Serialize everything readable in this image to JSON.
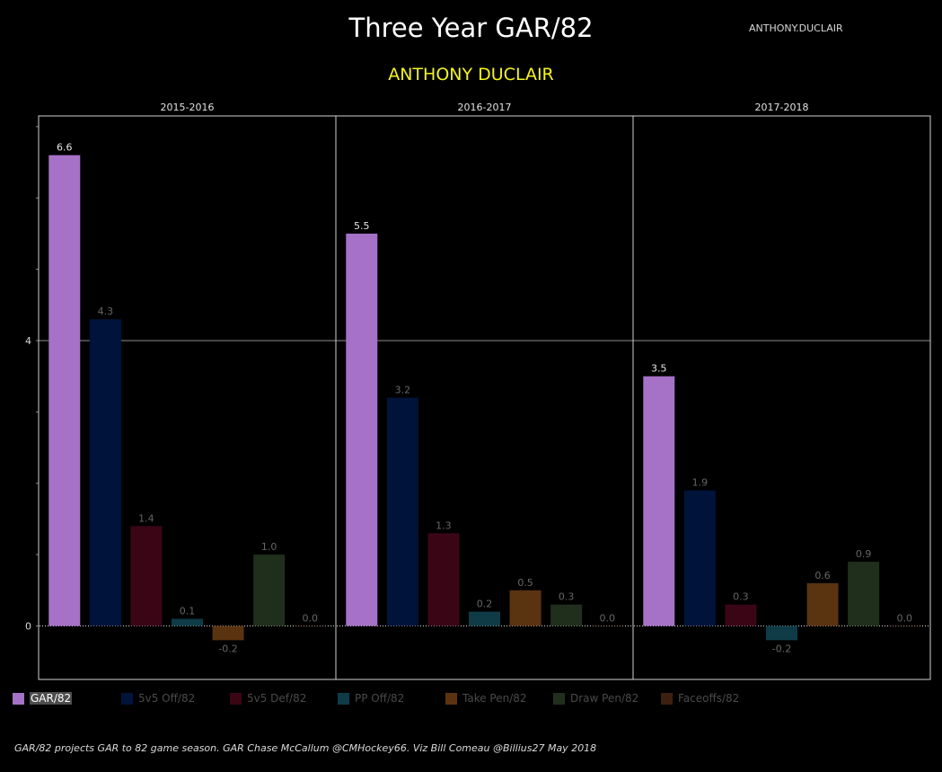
{
  "header": {
    "title": "Three Year GAR/82",
    "corner_name": "ANTHONY.DUCLAIR",
    "player": "ANTHONY DUCLAIR"
  },
  "chart_data": {
    "type": "bar",
    "panels": [
      "2015-2016",
      "2016-2017",
      "2017-2018"
    ],
    "categories": [
      "GAR/82",
      "5v5 Off/82",
      "5v5 Def/82",
      "PP Off/82",
      "Take Pen/82",
      "Draw Pen/82",
      "Faceoffs/82"
    ],
    "colors": [
      "#a572c7",
      "#00143b",
      "#3a0616",
      "#0f3b47",
      "#5a3311",
      "#202f1b",
      "#3d1f0f"
    ],
    "series": [
      {
        "panel": "2015-2016",
        "values": [
          6.6,
          4.3,
          1.4,
          0.1,
          -0.2,
          1.0,
          0.0
        ]
      },
      {
        "panel": "2016-2017",
        "values": [
          5.5,
          3.2,
          1.3,
          0.2,
          0.5,
          0.3,
          0.0
        ]
      },
      {
        "panel": "2017-2018",
        "values": [
          3.5,
          1.9,
          0.3,
          -0.2,
          0.6,
          0.9,
          0.0
        ]
      }
    ],
    "y_ticks": [
      "0",
      "4"
    ],
    "ylim": [
      -0.75,
      7.15
    ],
    "grid": true
  },
  "legend": [
    {
      "label": "GAR/82",
      "color": "#a572c7",
      "active": true
    },
    {
      "label": "5v5 Off/82",
      "color": "#00143b",
      "active": false
    },
    {
      "label": "5v5 Def/82",
      "color": "#3a0616",
      "active": false
    },
    {
      "label": "PP Off/82",
      "color": "#0f3b47",
      "active": false
    },
    {
      "label": "Take Pen/82",
      "color": "#5a3311",
      "active": false
    },
    {
      "label": "Draw Pen/82",
      "color": "#202f1b",
      "active": false
    },
    {
      "label": "Faceoffs/82",
      "color": "#3d1f0f",
      "active": false
    }
  ],
  "footer": {
    "note": "GAR/82 projects GAR to 82 game season. GAR Chase McCallum @CMHockey66. Viz Bill Comeau @Billius27 May 2018"
  }
}
